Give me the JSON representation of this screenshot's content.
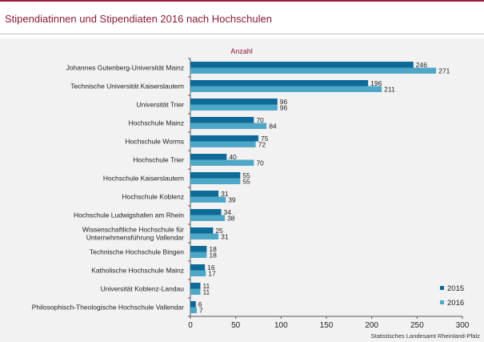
{
  "page": {
    "title": "Stipendiatinnen und Stipendiaten 2016 nach Hochschulen"
  },
  "colors": {
    "s2015": "#0e6a97",
    "s2016": "#4fa7c7",
    "title": "#8b1a3a",
    "rule": "#9b1d3a"
  },
  "chart_data": {
    "type": "bar",
    "orientation": "horizontal",
    "unit_label": "Anzahl",
    "categories": [
      "Johannes Gutenberg-Universität Mainz",
      "Technische Universität Kaiserslautern",
      "Universität Trier",
      "Hochschule Mainz",
      "Hochschule Worms",
      "Hochschule Trier",
      "Hochschule Kaiserslautern",
      "Hochschule Koblenz",
      "Hochschule Ludwigshafen am Rhein",
      "Wissenschaftliche Hochschule für Unternehmensführung Vallendar",
      "Technische Hochschule Bingen",
      "Katholische Hochschule Mainz",
      "Universität Koblenz-Landau",
      "Philosophisch-Theologische Hochschule Vallendar"
    ],
    "category_lines": [
      [
        "Johannes Gutenberg-Universität Mainz"
      ],
      [
        "Technische Universität Kaiserslautern"
      ],
      [
        "Universität Trier"
      ],
      [
        "Hochschule Mainz"
      ],
      [
        "Hochschule Worms"
      ],
      [
        "Hochschule Trier"
      ],
      [
        "Hochschule Kaiserslautern"
      ],
      [
        "Hochschule Koblenz"
      ],
      [
        "Hochschule Ludwigshafen am Rhein"
      ],
      [
        "Wissenschaftliche Hochschule für",
        "Unternehmensführung Vallendar"
      ],
      [
        "Technische Hochschule Bingen"
      ],
      [
        "Katholische Hochschule Mainz"
      ],
      [
        "Universität Koblenz-Landau"
      ],
      [
        "Philosophisch-Theologische Hochschule Vallendar"
      ]
    ],
    "series": [
      {
        "name": "2015",
        "color": "#0e6a97",
        "values": [
          246,
          196,
          96,
          70,
          75,
          40,
          55,
          31,
          34,
          25,
          18,
          16,
          11,
          6
        ]
      },
      {
        "name": "2016",
        "color": "#4fa7c7",
        "values": [
          271,
          211,
          96,
          84,
          72,
          70,
          55,
          39,
          38,
          31,
          18,
          17,
          11,
          7
        ]
      }
    ],
    "xlim": [
      0,
      300
    ],
    "xticks": [
      0,
      50,
      100,
      150,
      200,
      250,
      300
    ],
    "legend_position": "bottom-right",
    "source": "Statistisches Landesamt Rheinland-Pfalz"
  }
}
